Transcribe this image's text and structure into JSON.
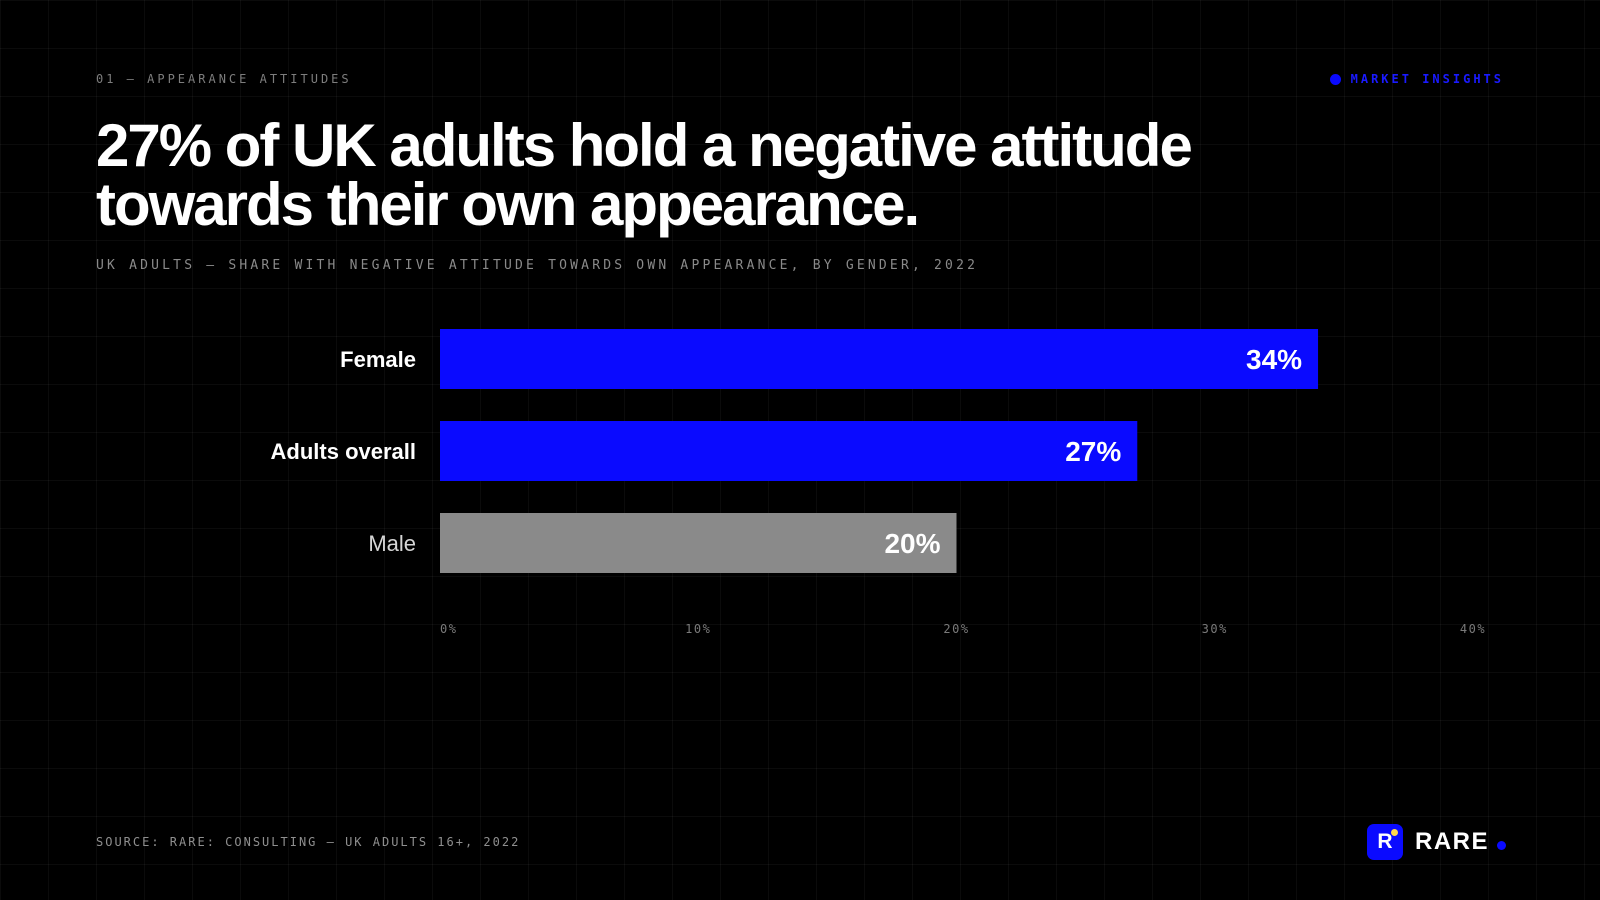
{
  "header": {
    "eyebrow": "01 — APPEARANCE ATTITUDES",
    "tag": "MARKET INSIGHTS",
    "headline": "27% of UK adults hold a negative attitude towards their own appearance.",
    "subtitle": "UK ADULTS — SHARE WITH NEGATIVE ATTITUDE TOWARDS OWN APPEARANCE, BY GENDER, 2022"
  },
  "footer": {
    "source": "SOURCE: RARE: CONSULTING — UK ADULTS 16+, 2022",
    "brand": "RARE",
    "logo_letter": "R"
  },
  "colors": {
    "background": "#000000",
    "accent": "#0a0aff",
    "muted_bar": "#8a8a8a",
    "label_strong": "#ffffff",
    "label_muted": "#d6d6d6",
    "tick": "#7a7a7a"
  },
  "chart_data": {
    "type": "bar",
    "orientation": "horizontal",
    "title": "UK ADULTS — SHARE WITH NEGATIVE ATTITUDE TOWARDS OWN APPEARANCE, BY GENDER, 2022",
    "categories": [
      "Female",
      "Adults overall",
      "Male"
    ],
    "values": [
      34,
      27,
      20
    ],
    "value_labels": [
      "34%",
      "27%",
      "20%"
    ],
    "highlight": [
      true,
      true,
      false
    ],
    "unit": "%",
    "xlim": [
      0,
      40
    ],
    "xticks": [
      0,
      10,
      20,
      30,
      40
    ],
    "xtick_labels": [
      "0%",
      "10%",
      "20%",
      "30%",
      "40%"
    ],
    "grid": true,
    "legend": "none"
  }
}
